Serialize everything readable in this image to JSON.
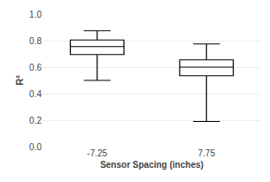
{
  "chart_data": {
    "type": "box",
    "xlabel": "Sensor Spacing (inches)",
    "ylabel": "R²",
    "categories": [
      "-7.25",
      "7.75"
    ],
    "whislo": [
      0.5,
      0.19
    ],
    "q1": [
      0.695,
      0.535
    ],
    "med": [
      0.755,
      0.6
    ],
    "q3": [
      0.805,
      0.655
    ],
    "whishi": [
      0.875,
      0.775
    ],
    "color": "black",
    "ylim": [
      0.0,
      1.0
    ],
    "yticks": [
      {
        "value": 0,
        "label": "0.0"
      },
      0.2,
      0.4,
      0.6,
      0.8,
      {
        "value": 1,
        "label": "1.0"
      }
    ],
    "grid": true
  }
}
